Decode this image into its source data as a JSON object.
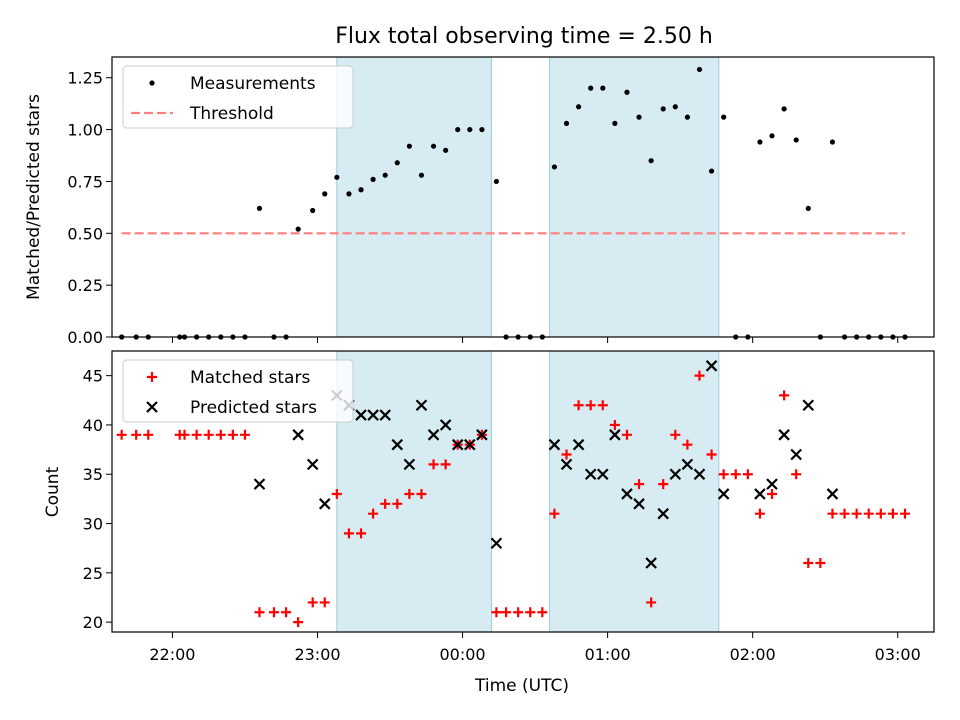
{
  "chart_data": [
    {
      "type": "scatter",
      "title": "Flux total observing time = 2.50 h",
      "xlabel": "",
      "ylabel": "Matched/Predicted stars",
      "ylim": [
        0,
        1.35
      ],
      "xlim": [
        "21:35",
        "03:15"
      ],
      "yticks": [
        "0.00",
        "0.25",
        "0.50",
        "0.75",
        "1.00",
        "1.25"
      ],
      "grid": false,
      "legend_position": "top-left",
      "shaded_intervals": [
        [
          "23:08",
          "00:12"
        ],
        [
          "00:36",
          "01:46"
        ]
      ],
      "series": [
        {
          "name": "Measurements",
          "marker": "dot",
          "color": "#000000",
          "points": [
            [
              "21:39",
              0.0
            ],
            [
              "21:45",
              0.0
            ],
            [
              "21:50",
              0.0
            ],
            [
              "22:03",
              0.0
            ],
            [
              "22:05",
              0.0
            ],
            [
              "22:10",
              0.0
            ],
            [
              "22:15",
              0.0
            ],
            [
              "22:20",
              0.0
            ],
            [
              "22:25",
              0.0
            ],
            [
              "22:30",
              0.0
            ],
            [
              "22:36",
              0.62
            ],
            [
              "22:42",
              0.0
            ],
            [
              "22:47",
              0.0
            ],
            [
              "22:52",
              0.52
            ],
            [
              "22:58",
              0.61
            ],
            [
              "23:03",
              0.69
            ],
            [
              "23:08",
              0.77
            ],
            [
              "23:13",
              0.69
            ],
            [
              "23:18",
              0.71
            ],
            [
              "23:23",
              0.76
            ],
            [
              "23:28",
              0.78
            ],
            [
              "23:33",
              0.84
            ],
            [
              "23:38",
              0.92
            ],
            [
              "23:43",
              0.78
            ],
            [
              "23:48",
              0.92
            ],
            [
              "23:53",
              0.9
            ],
            [
              "23:58",
              1.0
            ],
            [
              "00:03",
              1.0
            ],
            [
              "00:08",
              1.0
            ],
            [
              "00:14",
              0.75
            ],
            [
              "00:18",
              0.0
            ],
            [
              "00:23",
              0.0
            ],
            [
              "00:28",
              0.0
            ],
            [
              "00:33",
              0.0
            ],
            [
              "00:38",
              0.82
            ],
            [
              "00:43",
              1.03
            ],
            [
              "00:48",
              1.11
            ],
            [
              "00:53",
              1.2
            ],
            [
              "00:58",
              1.2
            ],
            [
              "01:03",
              1.03
            ],
            [
              "01:08",
              1.18
            ],
            [
              "01:13",
              1.06
            ],
            [
              "01:18",
              0.85
            ],
            [
              "01:23",
              1.1
            ],
            [
              "01:28",
              1.11
            ],
            [
              "01:33",
              1.06
            ],
            [
              "01:38",
              1.29
            ],
            [
              "01:43",
              0.8
            ],
            [
              "01:48",
              1.06
            ],
            [
              "01:53",
              0.0
            ],
            [
              "01:58",
              0.0
            ],
            [
              "02:03",
              0.94
            ],
            [
              "02:08",
              0.97
            ],
            [
              "02:13",
              1.1
            ],
            [
              "02:18",
              0.95
            ],
            [
              "02:23",
              0.62
            ],
            [
              "02:28",
              0.0
            ],
            [
              "02:33",
              0.94
            ],
            [
              "02:38",
              0.0
            ],
            [
              "02:43",
              0.0
            ],
            [
              "02:48",
              0.0
            ],
            [
              "02:53",
              0.0
            ],
            [
              "02:58",
              0.0
            ],
            [
              "03:03",
              0.0
            ]
          ]
        },
        {
          "name": "Threshold",
          "type": "line",
          "style": "dashed",
          "color": "#ff7f7f",
          "points": [
            [
              "21:39",
              0.5
            ],
            [
              "03:03",
              0.5
            ]
          ]
        }
      ]
    },
    {
      "type": "scatter",
      "title": "",
      "xlabel": "Time (UTC)",
      "ylabel": "Count",
      "ylim": [
        19,
        47.5
      ],
      "xlim": [
        "21:35",
        "03:15"
      ],
      "xticks": [
        "22:00",
        "23:00",
        "00:00",
        "01:00",
        "02:00",
        "03:00"
      ],
      "yticks": [
        "20",
        "25",
        "30",
        "35",
        "40",
        "45"
      ],
      "grid": false,
      "legend_position": "top-left",
      "shaded_intervals": [
        [
          "23:08",
          "00:12"
        ],
        [
          "00:36",
          "01:46"
        ]
      ],
      "series": [
        {
          "name": "Matched stars",
          "marker": "plus",
          "color": "#ff0000",
          "points": [
            [
              "21:39",
              39
            ],
            [
              "21:45",
              39
            ],
            [
              "21:50",
              39
            ],
            [
              "22:03",
              39
            ],
            [
              "22:05",
              39
            ],
            [
              "22:10",
              39
            ],
            [
              "22:15",
              39
            ],
            [
              "22:20",
              39
            ],
            [
              "22:25",
              39
            ],
            [
              "22:30",
              39
            ],
            [
              "22:36",
              21
            ],
            [
              "22:42",
              21
            ],
            [
              "22:47",
              21
            ],
            [
              "22:52",
              20
            ],
            [
              "22:58",
              22
            ],
            [
              "23:03",
              22
            ],
            [
              "23:08",
              33
            ],
            [
              "23:13",
              29
            ],
            [
              "23:18",
              29
            ],
            [
              "23:23",
              31
            ],
            [
              "23:28",
              32
            ],
            [
              "23:33",
              32
            ],
            [
              "23:38",
              33
            ],
            [
              "23:43",
              33
            ],
            [
              "23:48",
              36
            ],
            [
              "23:53",
              36
            ],
            [
              "23:58",
              38
            ],
            [
              "00:03",
              38
            ],
            [
              "00:08",
              39
            ],
            [
              "00:14",
              21
            ],
            [
              "00:18",
              21
            ],
            [
              "00:23",
              21
            ],
            [
              "00:28",
              21
            ],
            [
              "00:33",
              21
            ],
            [
              "00:38",
              31
            ],
            [
              "00:43",
              37
            ],
            [
              "00:48",
              42
            ],
            [
              "00:53",
              42
            ],
            [
              "00:58",
              42
            ],
            [
              "01:03",
              40
            ],
            [
              "01:08",
              39
            ],
            [
              "01:13",
              34
            ],
            [
              "01:18",
              22
            ],
            [
              "01:23",
              34
            ],
            [
              "01:28",
              39
            ],
            [
              "01:33",
              38
            ],
            [
              "01:38",
              45
            ],
            [
              "01:43",
              37
            ],
            [
              "01:48",
              35
            ],
            [
              "01:53",
              35
            ],
            [
              "01:58",
              35
            ],
            [
              "02:03",
              31
            ],
            [
              "02:08",
              33
            ],
            [
              "02:13",
              43
            ],
            [
              "02:18",
              35
            ],
            [
              "02:23",
              26
            ],
            [
              "02:28",
              26
            ],
            [
              "02:33",
              31
            ],
            [
              "02:38",
              31
            ],
            [
              "02:43",
              31
            ],
            [
              "02:48",
              31
            ],
            [
              "02:53",
              31
            ],
            [
              "02:58",
              31
            ],
            [
              "03:03",
              31
            ]
          ]
        },
        {
          "name": "Predicted stars",
          "marker": "x",
          "color": "#000000",
          "points": [
            [
              "22:36",
              34
            ],
            [
              "22:52",
              39
            ],
            [
              "22:58",
              36
            ],
            [
              "23:03",
              32
            ],
            [
              "23:08",
              43
            ],
            [
              "23:13",
              42
            ],
            [
              "23:18",
              41
            ],
            [
              "23:23",
              41
            ],
            [
              "23:28",
              41
            ],
            [
              "23:33",
              38
            ],
            [
              "23:38",
              36
            ],
            [
              "23:43",
              42
            ],
            [
              "23:48",
              39
            ],
            [
              "23:53",
              40
            ],
            [
              "23:58",
              38
            ],
            [
              "00:03",
              38
            ],
            [
              "00:08",
              39
            ],
            [
              "00:14",
              28
            ],
            [
              "00:38",
              38
            ],
            [
              "00:43",
              36
            ],
            [
              "00:48",
              38
            ],
            [
              "00:53",
              35
            ],
            [
              "00:58",
              35
            ],
            [
              "01:03",
              39
            ],
            [
              "01:08",
              33
            ],
            [
              "01:13",
              32
            ],
            [
              "01:18",
              26
            ],
            [
              "01:23",
              31
            ],
            [
              "01:28",
              35
            ],
            [
              "01:33",
              36
            ],
            [
              "01:38",
              35
            ],
            [
              "01:43",
              46
            ],
            [
              "01:48",
              33
            ],
            [
              "02:03",
              33
            ],
            [
              "02:08",
              34
            ],
            [
              "02:13",
              39
            ],
            [
              "02:18",
              37
            ],
            [
              "02:23",
              42
            ],
            [
              "02:33",
              33
            ]
          ]
        }
      ]
    }
  ]
}
